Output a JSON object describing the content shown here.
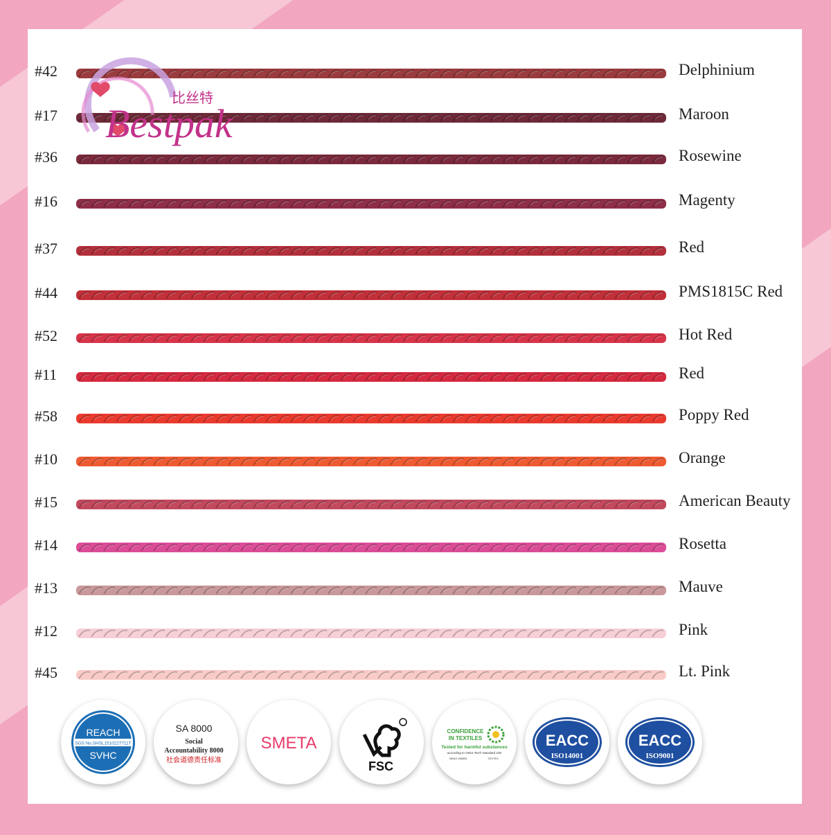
{
  "brand": {
    "name": "Bestpak",
    "chinese": "比丝特",
    "color": "#c2328a",
    "heart": "#e24a6a"
  },
  "swatches": [
    {
      "code": "#42",
      "name": "Delphinium",
      "color": "#9a3b3e"
    },
    {
      "code": "#17",
      "name": "Maroon",
      "color": "#6e2a38"
    },
    {
      "code": "#36",
      "name": "Rosewine",
      "color": "#7a2a3c"
    },
    {
      "code": "#16",
      "name": "Magenty",
      "color": "#8e2e48"
    },
    {
      "code": "#37",
      "name": "Red",
      "color": "#b2303c"
    },
    {
      "code": "#44",
      "name": "PMS1815C Red",
      "color": "#c2303a"
    },
    {
      "code": "#52",
      "name": "Hot Red",
      "color": "#d7344a"
    },
    {
      "code": "#11",
      "name": "Red",
      "color": "#d52a40"
    },
    {
      "code": "#58",
      "name": "Poppy Red",
      "color": "#ea3a2e"
    },
    {
      "code": "#10",
      "name": "Orange",
      "color": "#ee5a32"
    },
    {
      "code": "#15",
      "name": "American Beauty",
      "color": "#c2495e"
    },
    {
      "code": "#14",
      "name": "Rosetta",
      "color": "#dc4d97"
    },
    {
      "code": "#13",
      "name": "Mauve",
      "color": "#c9989a"
    },
    {
      "code": "#12",
      "name": "Pink",
      "color": "#f7cfd6"
    },
    {
      "code": "#45",
      "name": "Lt. Pink",
      "color": "#f9cbc7"
    }
  ],
  "certifications": {
    "reach": {
      "top": "REACH",
      "sgs": "SGS No.SHSL1510227711T",
      "bottom": "SVHC",
      "color": "#1d6fb5"
    },
    "sa8000": {
      "title": "SA 8000",
      "line1": "Social",
      "line2": "Accountability 8000",
      "chinese": "社会道德责任标准",
      "chinese_color": "#d2232a"
    },
    "smeta": {
      "label": "SMETA",
      "color": "#e83a6a"
    },
    "fsc": {
      "label": "FSC"
    },
    "oeko": {
      "line1": "CONFIDENCE",
      "line2": "IN TEXTILES",
      "line3": "Tested for harmful substances",
      "line4": "according to Oeko-Tex® Standard 100",
      "code": "BEAO 055551",
      "brand": "TEXTEX",
      "color": "#3aa03a"
    },
    "eacc1": {
      "label": "EACC",
      "sub": "ISO14001",
      "color": "#1f4fa0"
    },
    "eacc2": {
      "label": "EACC",
      "sub": "ISO9001",
      "color": "#1f4fa0"
    }
  }
}
